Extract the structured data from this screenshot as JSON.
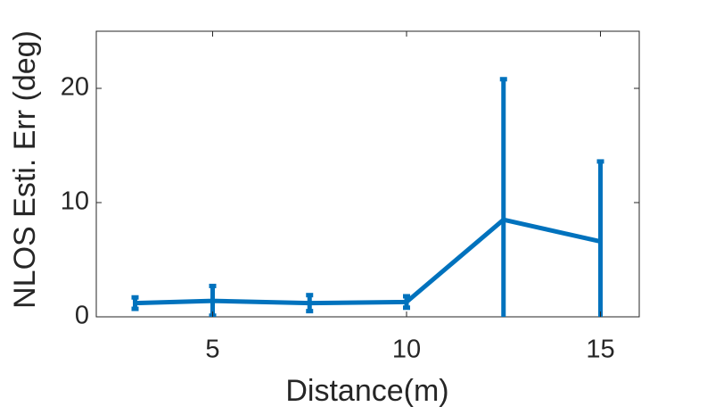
{
  "chart_data": {
    "type": "line",
    "xlabel": "Distance(m)",
    "ylabel": "NLOS Esti. Err (deg)",
    "x": [
      3,
      5,
      7.5,
      10,
      12.5,
      15
    ],
    "values": [
      1.2,
      1.4,
      1.2,
      1.3,
      8.5,
      6.6
    ],
    "errors": [
      0.5,
      1.3,
      0.7,
      0.5,
      12.3,
      7.0
    ],
    "color": "#0072bd",
    "xlim": [
      2,
      16
    ],
    "xticks": [
      5,
      10,
      15
    ],
    "ylim": [
      0,
      25
    ],
    "yticks": [
      0,
      10,
      20
    ]
  }
}
